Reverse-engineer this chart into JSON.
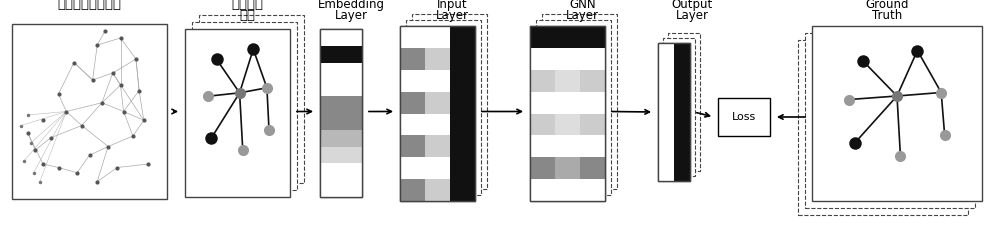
{
  "background": "#ffffff",
  "labels": {
    "fsm": "有限状态机图模型",
    "random_walk_1": "随机游走",
    "random_walk_2": "采样",
    "embedding_1": "Embedding",
    "embedding_2": "Layer",
    "input_1": "Input",
    "input_2": "Layer",
    "gnn_1": "GNN",
    "gnn_2": "Layer",
    "output_1": "Output",
    "output_2": "Layer",
    "loss": "Loss",
    "ground_truth_1": "Ground",
    "ground_truth_2": "Truth"
  },
  "border_color": "#444444",
  "emb_strips": [
    "#ffffff",
    "#ffffff",
    "#d8d8d8",
    "#b8b8b8",
    "#888888",
    "#888888",
    "#ffffff",
    "#ffffff",
    "#111111",
    "#ffffff"
  ],
  "inp_strips_col0": [
    "#888888",
    "#ffffff",
    "#888888",
    "#ffffff",
    "#888888",
    "#ffffff",
    "#888888",
    "#ffffff"
  ],
  "inp_strips_col1": [
    "#cccccc",
    "#ffffff",
    "#cccccc",
    "#ffffff",
    "#cccccc",
    "#ffffff",
    "#cccccc",
    "#ffffff"
  ],
  "inp_strips_col2": [
    "#111111",
    "#111111",
    "#111111",
    "#111111",
    "#111111",
    "#111111",
    "#111111",
    "#111111"
  ],
  "gnn_strips_col0": [
    "#ffffff",
    "#888888",
    "#ffffff",
    "#cccccc",
    "#ffffff",
    "#cccccc",
    "#ffffff",
    "#111111"
  ],
  "gnn_strips_col1": [
    "#ffffff",
    "#aaaaaa",
    "#ffffff",
    "#dddddd",
    "#ffffff",
    "#dddddd",
    "#ffffff",
    "#111111"
  ],
  "gnn_strips_col2": [
    "#ffffff",
    "#888888",
    "#ffffff",
    "#cccccc",
    "#ffffff",
    "#cccccc",
    "#ffffff",
    "#111111"
  ]
}
